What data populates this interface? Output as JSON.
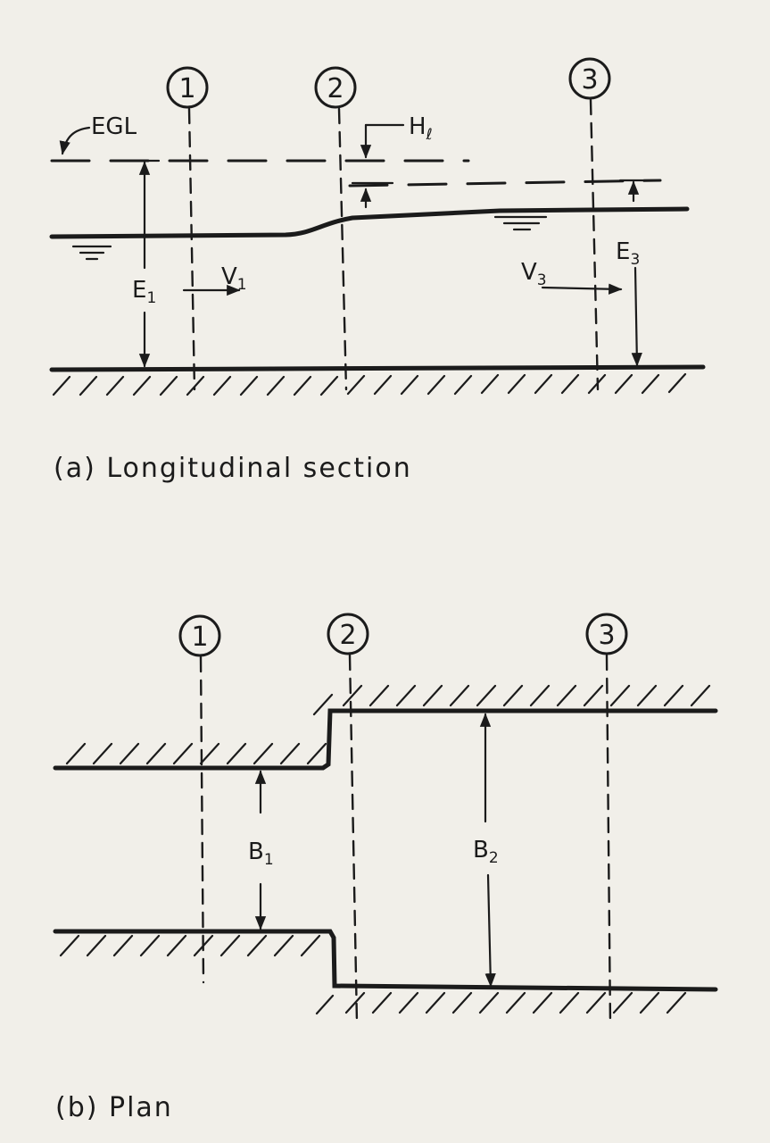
{
  "sections": [
    "1",
    "2",
    "3"
  ],
  "longitudinal": {
    "caption": "(a) Longitudinal section",
    "egl_label": "EGL",
    "head_loss": {
      "main": "H",
      "sub": "ℓ"
    },
    "e1": {
      "main": "E",
      "sub": "1"
    },
    "e3": {
      "main": "E",
      "sub": "3"
    },
    "v1": {
      "main": "V",
      "sub": "1"
    },
    "v3": {
      "main": "V",
      "sub": "3"
    }
  },
  "plan": {
    "caption": "(b) Plan",
    "b1": {
      "main": "B",
      "sub": "1"
    },
    "b2": {
      "main": "B",
      "sub": "2"
    }
  }
}
